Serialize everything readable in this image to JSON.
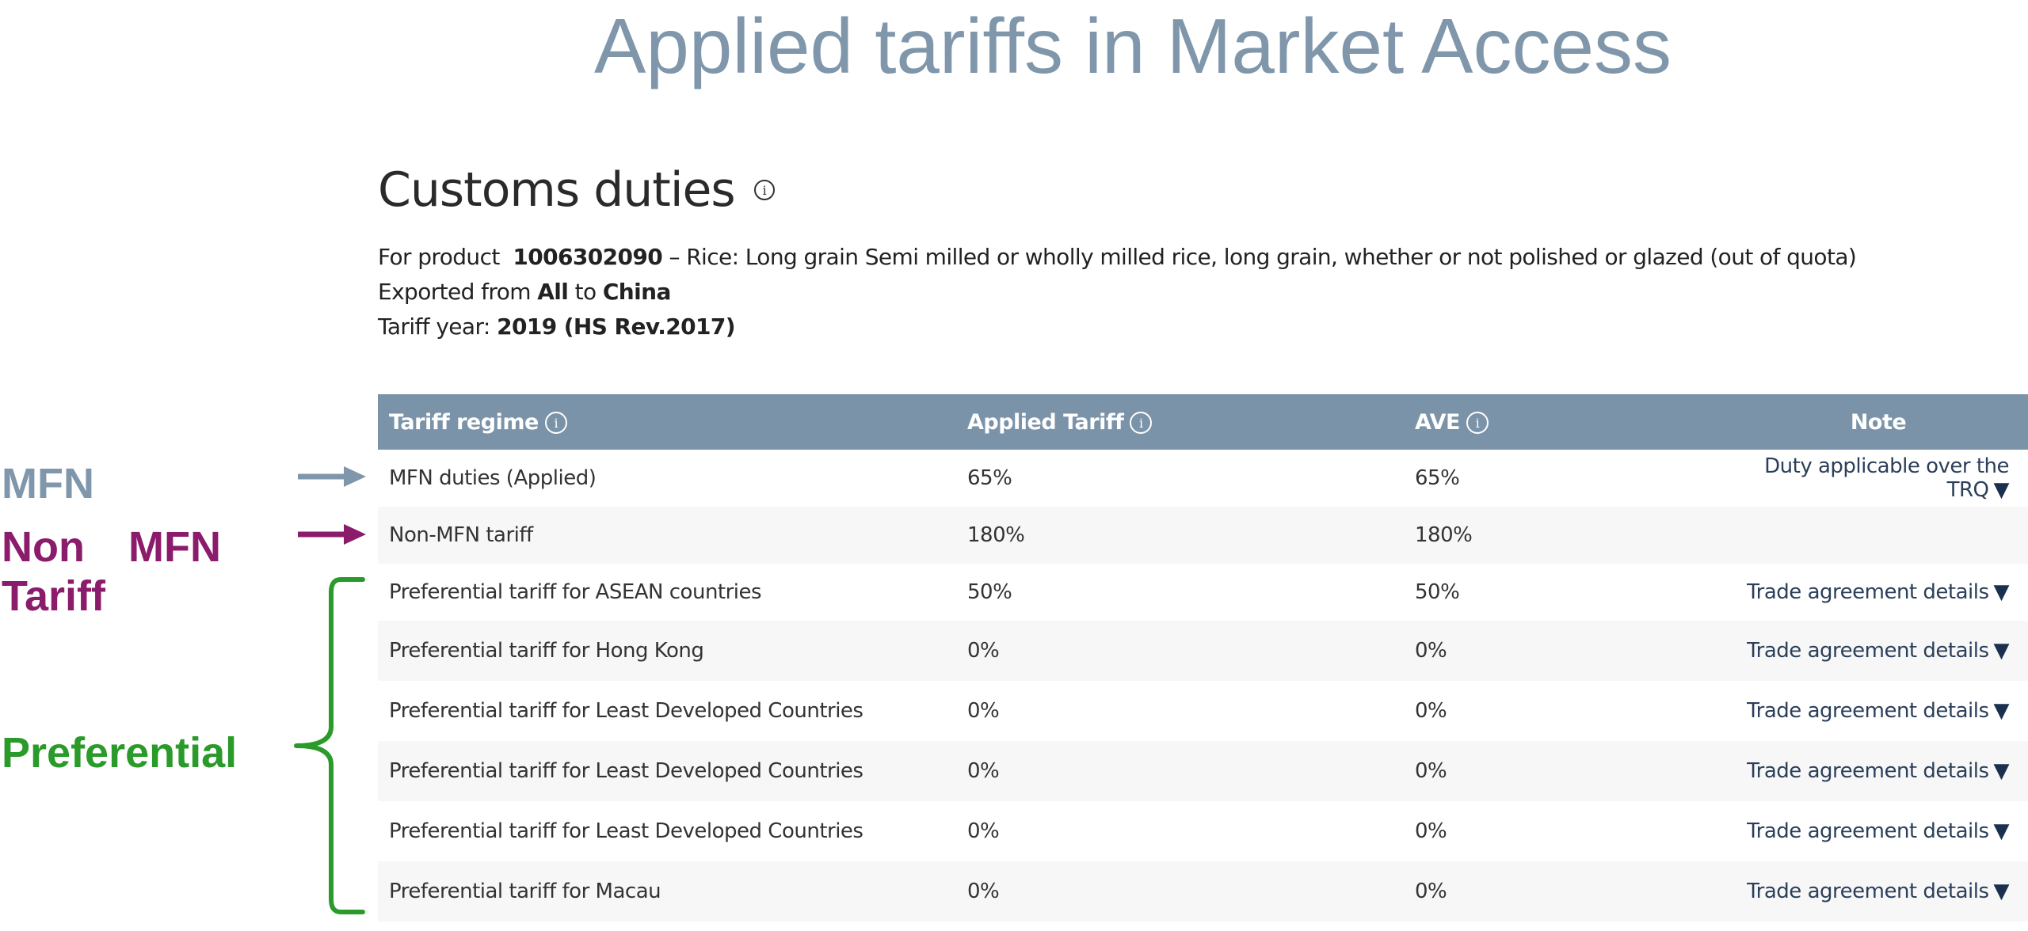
{
  "slide": {
    "title": "Applied tariffs in Market Access"
  },
  "panel": {
    "heading": "Customs duties",
    "product_prefix": "For product",
    "product_code": "1006302090",
    "product_desc": "– Rice: Long grain Semi milled or wholly milled rice, long grain, whether or not polished or glazed (out of quota)",
    "exported_prefix": "Exported from",
    "exported_from": "All",
    "exported_to_word": "to",
    "exported_to": "China",
    "tariff_year_prefix": "Tariff year:",
    "tariff_year": "2019 (HS Rev.2017)"
  },
  "table": {
    "headers": {
      "regime": "Tariff regime",
      "applied": "Applied Tariff",
      "ave": "AVE",
      "note": "Note"
    },
    "rows": [
      {
        "regime": "MFN duties (Applied)",
        "applied": "65%",
        "ave": "65%",
        "note": "Duty applicable over the TRQ"
      },
      {
        "regime": "Non-MFN tariff",
        "applied": "180%",
        "ave": "180%",
        "note": ""
      },
      {
        "regime": "Preferential tariff for ASEAN countries",
        "applied": "50%",
        "ave": "50%",
        "note": "Trade agreement details"
      },
      {
        "regime": "Preferential tariff for Hong Kong",
        "applied": "0%",
        "ave": "0%",
        "note": "Trade agreement details"
      },
      {
        "regime": "Preferential tariff for Least Developed Countries",
        "applied": "0%",
        "ave": "0%",
        "note": "Trade agreement details"
      },
      {
        "regime": "Preferential tariff for Least Developed Countries",
        "applied": "0%",
        "ave": "0%",
        "note": "Trade agreement details"
      },
      {
        "regime": "Preferential tariff for Least Developed Countries",
        "applied": "0%",
        "ave": "0%",
        "note": "Trade agreement details"
      },
      {
        "regime": "Preferential tariff for Macau",
        "applied": "0%",
        "ave": "0%",
        "note": "Trade agreement details"
      }
    ]
  },
  "annotations": {
    "mfn": "MFN",
    "non_mfn_line1": "Non MFN",
    "non_mfn_line2": "Tariff",
    "preferential": "Preferential"
  },
  "colors": {
    "mfn": "#8097ab",
    "non_mfn": "#8b1b6b",
    "preferential": "#2a9a2a",
    "header_bg": "#7b93a9"
  }
}
